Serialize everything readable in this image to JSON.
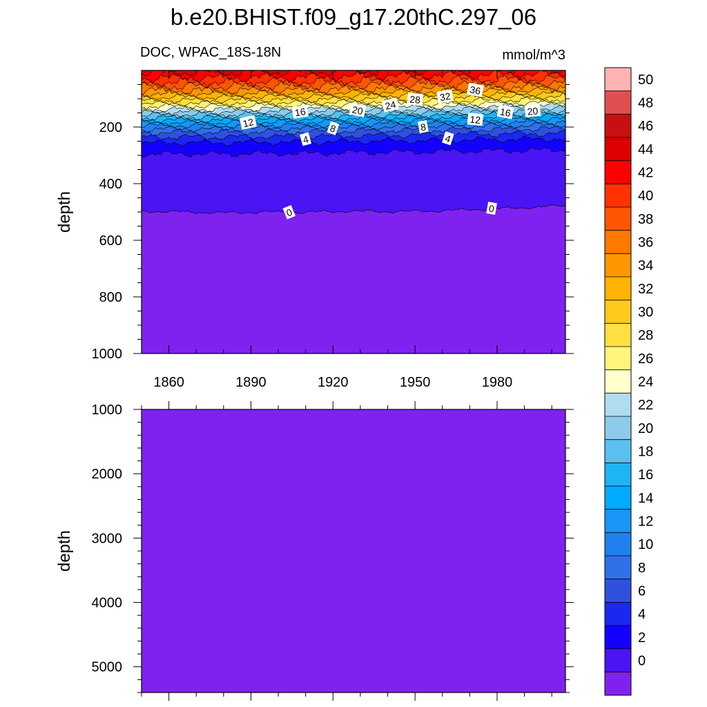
{
  "title": "b.e20.BHIST.f09_g17.20thC.297_06",
  "subtitle_left": "DOC, WPAC_18S-18N",
  "subtitle_right": "mmol/m^3",
  "chart_data": [
    {
      "type": "heatmap",
      "panel": "upper",
      "ylabel": "depth",
      "xlim": [
        1850,
        2005
      ],
      "ylim": [
        1000,
        0
      ],
      "y_reversed": true,
      "x_ticks": [
        1860,
        1890,
        1920,
        1950,
        1980
      ],
      "y_ticks": [
        200,
        400,
        600,
        800,
        1000
      ],
      "years": [
        1850,
        1865,
        1880,
        1895,
        1910,
        1925,
        1940,
        1955,
        1970,
        1985,
        2005
      ],
      "contour_depths": [
        {
          "level": 0,
          "depths": [
            497,
            500,
            503,
            500,
            501,
            497,
            499,
            497,
            492,
            487,
            478
          ]
        },
        {
          "level": 2,
          "depths": [
            296,
            294,
            295,
            293,
            293,
            290,
            288,
            287,
            284,
            283,
            280
          ]
        },
        {
          "level": 4,
          "depths": [
            257,
            255,
            256,
            253,
            254,
            251,
            249,
            248,
            245,
            244,
            241
          ]
        },
        {
          "level": 6,
          "depths": [
            236,
            235,
            236,
            233,
            233,
            231,
            229,
            228,
            226,
            224,
            222
          ]
        },
        {
          "level": 8,
          "depths": [
            220,
            218,
            219,
            216,
            217,
            214,
            212,
            211,
            209,
            207,
            205
          ]
        },
        {
          "level": 12,
          "depths": [
            196,
            194,
            195,
            192,
            193,
            190,
            188,
            187,
            185,
            183,
            181
          ]
        },
        {
          "level": 16,
          "depths": [
            176,
            174,
            175,
            172,
            173,
            170,
            168,
            167,
            165,
            163,
            161
          ]
        },
        {
          "level": 20,
          "depths": [
            158,
            156,
            157,
            154,
            155,
            152,
            150,
            149,
            147,
            145,
            143
          ]
        },
        {
          "level": 24,
          "depths": [
            138,
            136,
            137,
            134,
            135,
            132,
            130,
            129,
            127,
            125,
            123
          ]
        },
        {
          "level": 28,
          "depths": [
            118,
            116,
            117,
            114,
            115,
            112,
            110,
            109,
            107,
            105,
            103
          ]
        },
        {
          "level": 32,
          "depths": [
            96,
            94,
            95,
            92,
            93,
            90,
            88,
            87,
            85,
            83,
            81
          ]
        },
        {
          "level": 36,
          "depths": [
            72,
            70,
            71,
            68,
            69,
            66,
            64,
            63,
            61,
            59,
            57
          ]
        },
        {
          "level": 40,
          "depths": [
            45,
            43,
            44,
            41,
            42,
            39,
            37,
            36,
            34,
            32,
            30
          ]
        }
      ],
      "contour_labels": [
        {
          "text": "0",
          "year": 1904,
          "depth": 502
        },
        {
          "text": "0",
          "year": 1978,
          "depth": 488
        },
        {
          "text": "4",
          "year": 1910,
          "depth": 244
        },
        {
          "text": "4",
          "year": 1962,
          "depth": 241
        },
        {
          "text": "8",
          "year": 1920,
          "depth": 205
        },
        {
          "text": "8",
          "year": 1953,
          "depth": 200
        },
        {
          "text": "12",
          "year": 1889,
          "depth": 185
        },
        {
          "text": "12",
          "year": 1972,
          "depth": 174
        },
        {
          "text": "16",
          "year": 1908,
          "depth": 147
        },
        {
          "text": "16",
          "year": 1983,
          "depth": 148
        },
        {
          "text": "20",
          "year": 1929,
          "depth": 141
        },
        {
          "text": "20",
          "year": 1993,
          "depth": 144
        },
        {
          "text": "24",
          "year": 1941,
          "depth": 123
        },
        {
          "text": "28",
          "year": 1950,
          "depth": 103
        },
        {
          "text": "32",
          "year": 1961,
          "depth": 93
        },
        {
          "text": "36",
          "year": 1972,
          "depth": 70
        }
      ]
    },
    {
      "type": "heatmap",
      "panel": "lower",
      "ylabel": "depth",
      "xlim": [
        1850,
        2005
      ],
      "ylim": [
        5400,
        1000
      ],
      "y_reversed": true,
      "y_ticks": [
        1000,
        2000,
        3000,
        4000,
        5000
      ],
      "uniform_value_range": [
        0,
        2
      ]
    }
  ],
  "colorbar": {
    "labels": [
      "50",
      "48",
      "46",
      "44",
      "42",
      "40",
      "38",
      "36",
      "34",
      "32",
      "30",
      "28",
      "26",
      "24",
      "22",
      "20",
      "18",
      "16",
      "14",
      "12",
      "10",
      "8",
      "6",
      "4",
      "2",
      "0"
    ],
    "colors_top_to_bottom": [
      "#ffb3b3",
      "#e05050",
      "#c81010",
      "#dc0000",
      "#ff0000",
      "#ff3200",
      "#ff5500",
      "#ff7800",
      "#ff9600",
      "#ffb400",
      "#ffc91e",
      "#ffe040",
      "#fff57a",
      "#ffffcc",
      "#b0dcf0",
      "#8ccbeb",
      "#5ac0f0",
      "#1eb4f5",
      "#00aaff",
      "#1996f8",
      "#2080f0",
      "#3070e8",
      "#3050e0",
      "#1a28f0",
      "#1400ff",
      "#4a14f5",
      "#7f22f0"
    ]
  }
}
